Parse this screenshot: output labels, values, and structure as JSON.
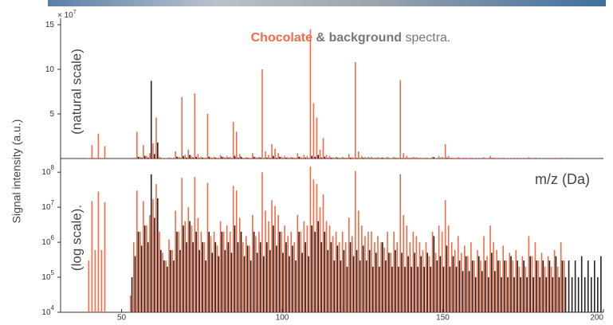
{
  "chart_data": {
    "type": "bar",
    "title_joiner": "&",
    "title_suffix": "spectra.",
    "y_label": "Signal intensity (a.u.)",
    "x_label": "m/z (Da)",
    "xlim": [
      31,
      200
    ],
    "xticks": [
      50,
      100,
      150,
      200
    ],
    "panels": [
      {
        "label": "(natural scale)",
        "log": false,
        "ylim": [
          0,
          150000000
        ],
        "multiplier": {
          "base": "× 10",
          "exponent": "7"
        },
        "yticks": [
          {
            "value": 50000000,
            "label": "5"
          },
          {
            "value": 100000000,
            "label": "10"
          },
          {
            "value": 150000000,
            "label": "15"
          }
        ]
      },
      {
        "label": "(log scale).",
        "log": true,
        "ylim": [
          10000,
          180000000
        ],
        "yticks": [
          {
            "value": 10000,
            "label": "10",
            "exponent": "4"
          },
          {
            "value": 100000,
            "label": "10",
            "exponent": "5"
          },
          {
            "value": 1000000,
            "label": "10",
            "exponent": "6"
          },
          {
            "value": 10000000,
            "label": "10",
            "exponent": "7"
          },
          {
            "value": 100000000,
            "label": "10",
            "exponent": "8"
          }
        ]
      }
    ],
    "series": [
      {
        "name": "Chocolate",
        "color": "#f26b47",
        "x": [
          40,
          41,
          42,
          43,
          44,
          45,
          53,
          54,
          55,
          56,
          57,
          58,
          59,
          60,
          61,
          62,
          63,
          64,
          65,
          66,
          67,
          68,
          69,
          70,
          71,
          72,
          73,
          74,
          75,
          76,
          77,
          78,
          79,
          80,
          81,
          82,
          83,
          84,
          85,
          86,
          87,
          88,
          89,
          90,
          91,
          92,
          93,
          94,
          95,
          96,
          97,
          98,
          99,
          100,
          101,
          102,
          103,
          104,
          105,
          106,
          107,
          108,
          109,
          110,
          111,
          112,
          113,
          114,
          115,
          116,
          117,
          118,
          119,
          120,
          121,
          122,
          123,
          124,
          125,
          126,
          127,
          128,
          129,
          130,
          131,
          132,
          133,
          134,
          135,
          136,
          137,
          138,
          139,
          140,
          141,
          142,
          143,
          144,
          145,
          146,
          147,
          148,
          149,
          150,
          151,
          152,
          153,
          154,
          155,
          156,
          157,
          158,
          159,
          160,
          161,
          162,
          163,
          164,
          165,
          166,
          167,
          168,
          169,
          170,
          171,
          172,
          173,
          174,
          175,
          176,
          177,
          178,
          179,
          180,
          181,
          182,
          183,
          184,
          185,
          186,
          187,
          188
        ],
        "values": [
          300000.0,
          15000000.0,
          600000.0,
          28000000.0,
          600000.0,
          14000000.0,
          30000.0,
          1000000.0,
          30000000.0,
          2000000.0,
          15000000.0,
          3000000.0,
          6000000.0,
          17000000.0,
          46000000.0,
          2000000.0,
          500000.0,
          300000.0,
          1200000.0,
          600000.0,
          8000000.0,
          2000000.0,
          69000000.0,
          4000000.0,
          10000000.0,
          3000000.0,
          73000000.0,
          5000000.0,
          2000000.0,
          1000000.0,
          50000000.0,
          1500000.0,
          2000000.0,
          800000.0,
          4000000.0,
          2000000.0,
          3000000.0,
          2000000.0,
          41000000.0,
          30000000.0,
          5000000.0,
          1000000.0,
          1500000.0,
          800000.0,
          6000000.0,
          1500000.0,
          2000000.0,
          100000000.0,
          8000000.0,
          4000000.0,
          16000000.0,
          11000000.0,
          6000000.0,
          2000000.0,
          3000000.0,
          1500000.0,
          2000000.0,
          1000000.0,
          6000000.0,
          2000000.0,
          4000000.0,
          3000000.0,
          145000000.0,
          62000000.0,
          46000000.0,
          10000000.0,
          23000000.0,
          4000000.0,
          3000000.0,
          1500000.0,
          2000000.0,
          1000000.0,
          2000000.0,
          1000000.0,
          5000000.0,
          1500000.0,
          108000000.0,
          8000000.0,
          3000000.0,
          1500000.0,
          2000000.0,
          2000000.0,
          1000000.0,
          1500000.0,
          1000000.0,
          700000.0,
          2000000.0,
          500000.0,
          2000000.0,
          1000000.0,
          88000000.0,
          6000000.0,
          3000000.0,
          1000000.0,
          2000000.0,
          1500000.0,
          1000000.0,
          600000.0,
          1000000.0,
          400000.0,
          2000000.0,
          500000.0,
          3000000.0,
          2000000.0,
          16000000.0,
          3000000.0,
          1000000.0,
          600000.0,
          1500000.0,
          500000.0,
          800000.0,
          400000.0,
          1000000.0,
          300000.0,
          600000.0,
          300000.0,
          1500000.0,
          400000.0,
          3000000.0,
          1000000.0,
          600000.0,
          300000.0,
          800000.0,
          300000.0,
          500000.0,
          300000.0,
          600000.0,
          200000.0,
          400000.0,
          200000.0,
          1500000.0,
          400000.0,
          1000000.0,
          300000.0,
          500000.0,
          200000.0,
          400000.0,
          200000.0,
          600000.0,
          200000.0,
          1000000.0,
          300000.0
        ]
      },
      {
        "name": "background",
        "color": "#222222",
        "x": [
          53,
          54,
          55,
          56,
          57,
          58,
          59,
          60,
          61,
          62,
          63,
          64,
          65,
          66,
          67,
          68,
          69,
          70,
          71,
          72,
          73,
          74,
          75,
          76,
          77,
          78,
          79,
          80,
          81,
          82,
          83,
          84,
          85,
          86,
          87,
          88,
          89,
          90,
          91,
          92,
          93,
          94,
          95,
          96,
          97,
          98,
          99,
          100,
          101,
          102,
          103,
          104,
          105,
          106,
          107,
          108,
          109,
          110,
          111,
          112,
          113,
          114,
          115,
          116,
          117,
          118,
          119,
          120,
          121,
          122,
          123,
          124,
          125,
          126,
          127,
          128,
          129,
          130,
          131,
          132,
          133,
          134,
          135,
          136,
          137,
          138,
          139,
          140,
          141,
          142,
          143,
          144,
          145,
          146,
          147,
          148,
          149,
          150,
          151,
          152,
          153,
          154,
          155,
          156,
          157,
          158,
          159,
          160,
          161,
          162,
          163,
          164,
          165,
          166,
          167,
          168,
          169,
          170,
          171,
          172,
          173,
          174,
          175,
          176,
          177,
          178,
          179,
          180,
          181,
          182,
          183,
          184,
          185,
          186,
          187,
          188,
          189,
          190,
          191,
          192,
          193,
          194,
          195,
          196,
          197,
          198,
          199
        ],
        "values": [
          100000.0,
          400000.0,
          2000000.0,
          800000.0,
          3000000.0,
          1000000.0,
          87000000.0,
          5000000.0,
          18000000.0,
          600000.0,
          300000.0,
          200000.0,
          600000.0,
          300000.0,
          2000000.0,
          600000.0,
          3000000.0,
          1000000.0,
          4000000.0,
          1000000.0,
          2000000.0,
          600000.0,
          1000000.0,
          300000.0,
          2000000.0,
          500000.0,
          1000000.0,
          400000.0,
          2000000.0,
          600000.0,
          1000000.0,
          500000.0,
          3000000.0,
          1000000.0,
          2000000.0,
          400000.0,
          800000.0,
          300000.0,
          2000000.0,
          500000.0,
          1000000.0,
          400000.0,
          1000000.0,
          600000.0,
          3000000.0,
          800000.0,
          2000000.0,
          500000.0,
          1000000.0,
          400000.0,
          800000.0,
          300000.0,
          2000000.0,
          500000.0,
          1000000.0,
          400000.0,
          3000000.0,
          2000000.0,
          4000000.0,
          1000000.0,
          2000000.0,
          600000.0,
          1000000.0,
          300000.0,
          800000.0,
          300000.0,
          600000.0,
          200000.0,
          1000000.0,
          400000.0,
          600000.0,
          300000.0,
          800000.0,
          300000.0,
          600000.0,
          200000.0,
          500000.0,
          200000.0,
          1000000.0,
          300000.0,
          500000.0,
          200000.0,
          600000.0,
          200000.0,
          500000.0,
          200000.0,
          400000.0,
          200000.0,
          500000.0,
          200000.0,
          400000.0,
          200000.0,
          500000.0,
          200000.0,
          1500000.0,
          300000.0,
          400000.0,
          200000.0,
          800000.0,
          200000.0,
          400000.0,
          200000.0,
          300000.0,
          150000.0,
          400000.0,
          150000.0,
          300000.0,
          100000.0,
          400000.0,
          150000.0,
          300000.0,
          100000.0,
          500000.0,
          150000.0,
          300000.0,
          100000.0,
          300000.0,
          100000.0,
          400000.0,
          100000.0,
          300000.0,
          100000.0,
          300000.0,
          100000.0,
          400000.0,
          100000.0,
          300000.0,
          100000.0,
          300000.0,
          100000.0,
          300000.0,
          100000.0,
          400000.0,
          100000.0,
          300000.0,
          100000.0,
          300000.0,
          100000.0,
          300000.0,
          100000.0,
          400000.0,
          100000.0,
          300000.0,
          100000.0,
          300000.0,
          100000.0,
          400000.0
        ]
      }
    ]
  }
}
